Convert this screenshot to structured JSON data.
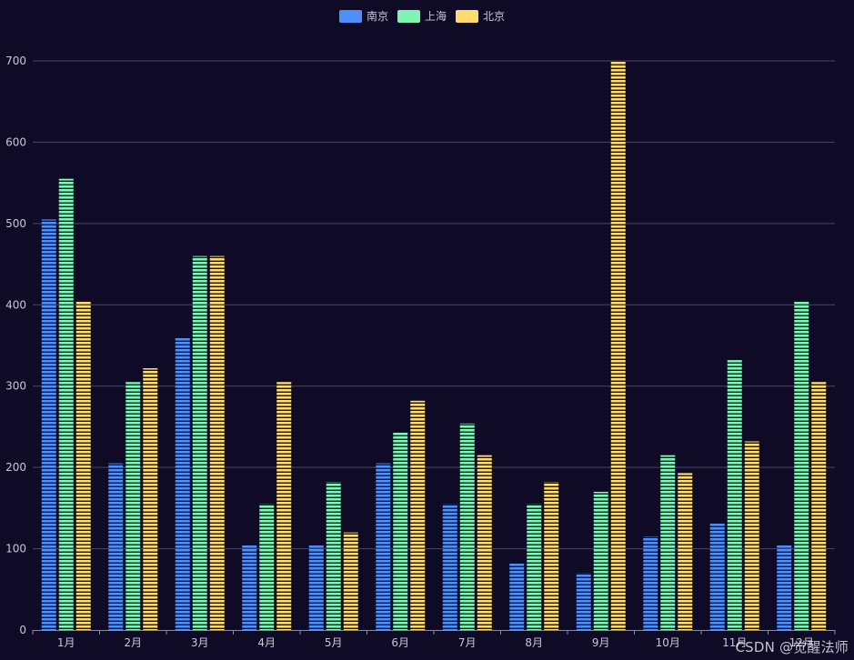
{
  "chart_data": {
    "type": "bar",
    "categories": [
      "1月",
      "2月",
      "3月",
      "4月",
      "5月",
      "6月",
      "7月",
      "8月",
      "9月",
      "10月",
      "11月",
      "12月"
    ],
    "series": [
      {
        "name": "南京",
        "values": [
          505,
          205,
          360,
          105,
          105,
          205,
          155,
          82,
          70,
          115,
          132,
          105
        ],
        "color": "#4e8ffa"
      },
      {
        "name": "上海",
        "values": [
          555,
          305,
          460,
          155,
          182,
          243,
          254,
          155,
          170,
          215,
          332,
          405
        ],
        "color": "#7ff5b4"
      },
      {
        "name": "北京",
        "values": [
          405,
          322,
          460,
          305,
          120,
          282,
          215,
          182,
          700,
          193,
          232,
          305
        ],
        "color": "#fddb6f"
      }
    ],
    "ylim": [
      0,
      700
    ],
    "yticks": [
      0,
      100,
      200,
      300,
      400,
      500,
      600,
      700
    ],
    "legend_position": "top-center",
    "grid": true
  },
  "watermark": "CSDN @觉醒法师",
  "colors": {
    "background": "#0f0b26",
    "grid": "#4a4760",
    "axis": "#8c8a9c",
    "text": "#c8c6d6"
  }
}
